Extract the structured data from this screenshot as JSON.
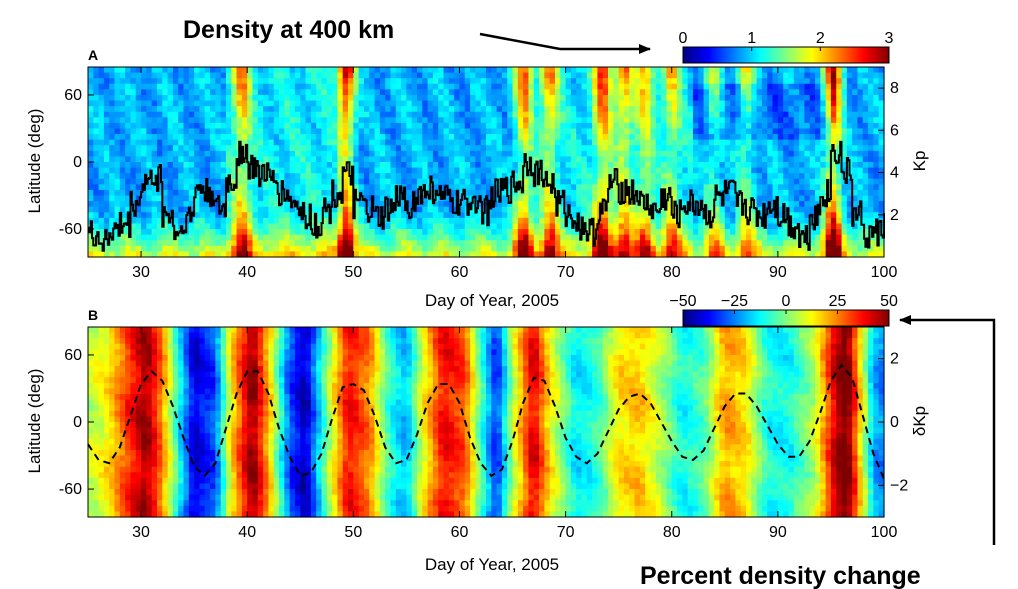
{
  "annotations": {
    "top_arrow_label": "Density at 400 km",
    "bottom_arrow_label": "Percent density change"
  },
  "colors": {
    "jet": [
      "#00007f",
      "#0000ff",
      "#0080ff",
      "#00ffff",
      "#80ff80",
      "#ffff00",
      "#ff8000",
      "#ff0000",
      "#7f0000"
    ],
    "trace": "#000000"
  },
  "chart_data": [
    {
      "type": "heatmap",
      "panel_label": "A",
      "xlabel": "Day of Year, 2005",
      "ylabel": "Latitude (deg)",
      "y2label": "Kp",
      "xlim": [
        25,
        100
      ],
      "ylim": [
        -85,
        85
      ],
      "y2lim": [
        0,
        9
      ],
      "xticks": [
        30,
        40,
        50,
        60,
        70,
        80,
        90,
        100
      ],
      "yticks": [
        60,
        0,
        -60
      ],
      "y2ticks": [
        2,
        4,
        6,
        8
      ],
      "colorbar": {
        "label": "Density at 400 km",
        "range": [
          0,
          3
        ],
        "ticks": [
          0,
          1,
          2,
          3
        ]
      },
      "storm_days": [
        {
          "day": 39.5,
          "amp": 0.9
        },
        {
          "day": 49.3,
          "amp": 1.5
        },
        {
          "day": 66.0,
          "amp": 1.1
        },
        {
          "day": 68.5,
          "amp": 0.9
        },
        {
          "day": 73.5,
          "amp": 1.2
        },
        {
          "day": 75.5,
          "amp": 0.9
        },
        {
          "day": 77.5,
          "amp": 0.8
        },
        {
          "day": 80.0,
          "amp": 0.7
        },
        {
          "day": 84.0,
          "amp": 0.6
        },
        {
          "day": 87.0,
          "amp": 0.7
        },
        {
          "day": 95.2,
          "amp": 1.5
        }
      ],
      "kp_series": {
        "name": "Kp",
        "x": [
          25,
          26,
          27,
          28,
          29,
          30,
          31,
          32,
          33,
          34,
          35,
          36,
          37,
          38,
          39,
          40,
          41,
          42,
          43,
          44,
          45,
          46,
          47,
          48,
          49,
          50,
          51,
          52,
          53,
          54,
          55,
          56,
          57,
          58,
          59,
          60,
          61,
          62,
          63,
          64,
          65,
          66,
          67,
          68,
          69,
          70,
          71,
          72,
          73,
          74,
          75,
          76,
          77,
          78,
          79,
          80,
          81,
          82,
          83,
          84,
          85,
          86,
          87,
          88,
          89,
          90,
          91,
          92,
          93,
          94,
          95,
          96,
          97,
          98,
          99,
          100
        ],
        "y": [
          1.0,
          0.8,
          1.2,
          1.5,
          2.5,
          3.5,
          3.8,
          2.0,
          1.2,
          1.8,
          3.2,
          3.0,
          2.2,
          3.5,
          5.0,
          4.2,
          4.0,
          3.5,
          3.0,
          2.5,
          2.0,
          1.5,
          2.2,
          3.0,
          3.8,
          2.5,
          2.2,
          1.8,
          2.2,
          2.8,
          2.5,
          3.0,
          3.2,
          2.8,
          2.5,
          2.5,
          2.8,
          2.2,
          3.0,
          3.2,
          3.5,
          4.5,
          4.0,
          3.5,
          2.5,
          2.0,
          1.5,
          1.2,
          2.2,
          3.5,
          3.2,
          3.0,
          2.5,
          2.2,
          2.8,
          2.0,
          2.5,
          2.5,
          2.0,
          2.8,
          3.0,
          2.5,
          2.2,
          2.0,
          2.5,
          2.0,
          1.5,
          1.0,
          2.0,
          3.0,
          5.0,
          4.0,
          2.0,
          1.0,
          1.2,
          1.5
        ]
      }
    },
    {
      "type": "heatmap",
      "panel_label": "B",
      "xlabel": "Day of Year, 2005",
      "ylabel": "Latitude (deg)",
      "y2label": "δKp",
      "xlim": [
        25,
        100
      ],
      "ylim": [
        -85,
        85
      ],
      "y2lim": [
        -3,
        3
      ],
      "xticks": [
        30,
        40,
        50,
        60,
        70,
        80,
        90,
        100
      ],
      "yticks": [
        60,
        0,
        -60
      ],
      "y2ticks": [
        2,
        0,
        -2
      ],
      "colorbar": {
        "label": "Percent density change",
        "range": [
          -50,
          50
        ],
        "ticks": [
          -50,
          -25,
          0,
          25,
          50
        ]
      },
      "column_values": [
        {
          "day": 25,
          "v": 5
        },
        {
          "day": 27,
          "v": 15
        },
        {
          "day": 29,
          "v": 35
        },
        {
          "day": 30.5,
          "v": 48
        },
        {
          "day": 32,
          "v": 25
        },
        {
          "day": 33.5,
          "v": -10
        },
        {
          "day": 35,
          "v": -42
        },
        {
          "day": 37,
          "v": -30
        },
        {
          "day": 38.5,
          "v": 15
        },
        {
          "day": 40.5,
          "v": 50
        },
        {
          "day": 42,
          "v": 20
        },
        {
          "day": 44,
          "v": -30
        },
        {
          "day": 45.5,
          "v": -45
        },
        {
          "day": 47.5,
          "v": 0
        },
        {
          "day": 49.5,
          "v": 38
        },
        {
          "day": 51.5,
          "v": 25
        },
        {
          "day": 53.5,
          "v": -10
        },
        {
          "day": 55,
          "v": -20
        },
        {
          "day": 56.5,
          "v": 10
        },
        {
          "day": 58.5,
          "v": 38
        },
        {
          "day": 60.5,
          "v": 30
        },
        {
          "day": 62,
          "v": -5
        },
        {
          "day": 63.5,
          "v": -35
        },
        {
          "day": 65,
          "v": 5
        },
        {
          "day": 67,
          "v": 42
        },
        {
          "day": 68.5,
          "v": 15
        },
        {
          "day": 71,
          "v": -15
        },
        {
          "day": 73,
          "v": -8
        },
        {
          "day": 75,
          "v": 15
        },
        {
          "day": 77,
          "v": 18
        },
        {
          "day": 79,
          "v": 5
        },
        {
          "day": 81,
          "v": -12
        },
        {
          "day": 83,
          "v": -5
        },
        {
          "day": 85,
          "v": 22
        },
        {
          "day": 87,
          "v": 15
        },
        {
          "day": 89,
          "v": -10
        },
        {
          "day": 91,
          "v": -12
        },
        {
          "day": 93.5,
          "v": 5
        },
        {
          "day": 95.5,
          "v": 45
        },
        {
          "day": 96.5,
          "v": 55
        },
        {
          "day": 98,
          "v": 10
        },
        {
          "day": 99,
          "v": -20
        },
        {
          "day": 100,
          "v": -25
        }
      ],
      "dkp_series": {
        "name": "δKp",
        "x": [
          25,
          26,
          27,
          28,
          29,
          30,
          31,
          32,
          33,
          34,
          35,
          36,
          37,
          38,
          39,
          40,
          41,
          42,
          43,
          44,
          45,
          46,
          47,
          48,
          49,
          50,
          51,
          52,
          53,
          54,
          55,
          56,
          57,
          58,
          59,
          60,
          61,
          62,
          63,
          64,
          65,
          66,
          67,
          68,
          69,
          70,
          71,
          72,
          73,
          74,
          75,
          76,
          77,
          78,
          79,
          80,
          81,
          82,
          83,
          84,
          85,
          86,
          87,
          88,
          89,
          90,
          91,
          92,
          93,
          94,
          95,
          96,
          97,
          98,
          99,
          100
        ],
        "y": [
          -0.7,
          -1.2,
          -1.3,
          -0.8,
          0.2,
          1.2,
          1.6,
          1.3,
          0.5,
          -0.5,
          -1.4,
          -1.7,
          -1.3,
          -0.2,
          0.9,
          1.6,
          1.6,
          0.9,
          -0.2,
          -1.1,
          -1.7,
          -1.6,
          -1.0,
          0.1,
          1.1,
          1.2,
          1.0,
          0.2,
          -0.8,
          -1.3,
          -1.2,
          -0.4,
          0.6,
          1.2,
          1.2,
          0.6,
          -0.5,
          -1.3,
          -1.7,
          -1.5,
          -0.6,
          0.6,
          1.4,
          1.3,
          0.5,
          -0.5,
          -1.1,
          -1.3,
          -1.0,
          -0.3,
          0.4,
          0.8,
          0.9,
          0.6,
          0.0,
          -0.6,
          -1.1,
          -1.2,
          -0.9,
          -0.2,
          0.5,
          0.9,
          0.9,
          0.5,
          -0.1,
          -0.7,
          -1.1,
          -1.1,
          -0.6,
          0.3,
          1.3,
          1.8,
          1.4,
          0.2,
          -1.0,
          -1.8
        ]
      }
    }
  ]
}
